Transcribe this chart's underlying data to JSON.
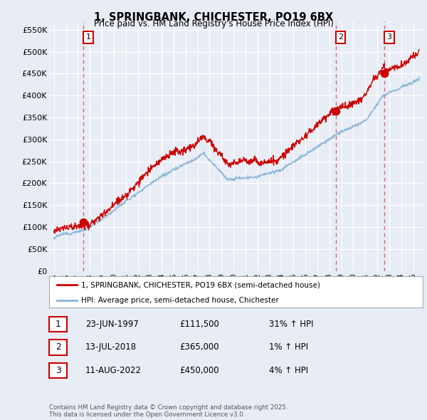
{
  "title": "1, SPRINGBANK, CHICHESTER, PO19 6BX",
  "subtitle": "Price paid vs. HM Land Registry's House Price Index (HPI)",
  "red_label": "1, SPRINGBANK, CHICHESTER, PO19 6BX (semi-detached house)",
  "blue_label": "HPI: Average price, semi-detached house, Chichester",
  "transaction1": {
    "num": 1,
    "date": "23-JUN-1997",
    "price": 111500,
    "hpi_text": "31% ↑ HPI",
    "year": 1997.48
  },
  "transaction2": {
    "num": 2,
    "date": "13-JUL-2018",
    "price": 365000,
    "hpi_text": "1% ↑ HPI",
    "year": 2018.53
  },
  "transaction3": {
    "num": 3,
    "date": "11-AUG-2022",
    "price": 450000,
    "hpi_text": "4% ↑ HPI",
    "year": 2022.61
  },
  "ylim": [
    0,
    570000
  ],
  "yticks": [
    0,
    50000,
    100000,
    150000,
    200000,
    250000,
    300000,
    350000,
    400000,
    450000,
    500000,
    550000
  ],
  "xlim_start": 1994.6,
  "xlim_end": 2025.8,
  "bg_color": "#e8edf5",
  "plot_bg_color": "#e8edf5",
  "red_color": "#cc0000",
  "blue_color": "#88b4d8",
  "grid_color": "#ffffff",
  "dashed_color": "#cc3333",
  "footnote": "Contains HM Land Registry data © Crown copyright and database right 2025.\nThis data is licensed under the Open Government Licence v3.0."
}
